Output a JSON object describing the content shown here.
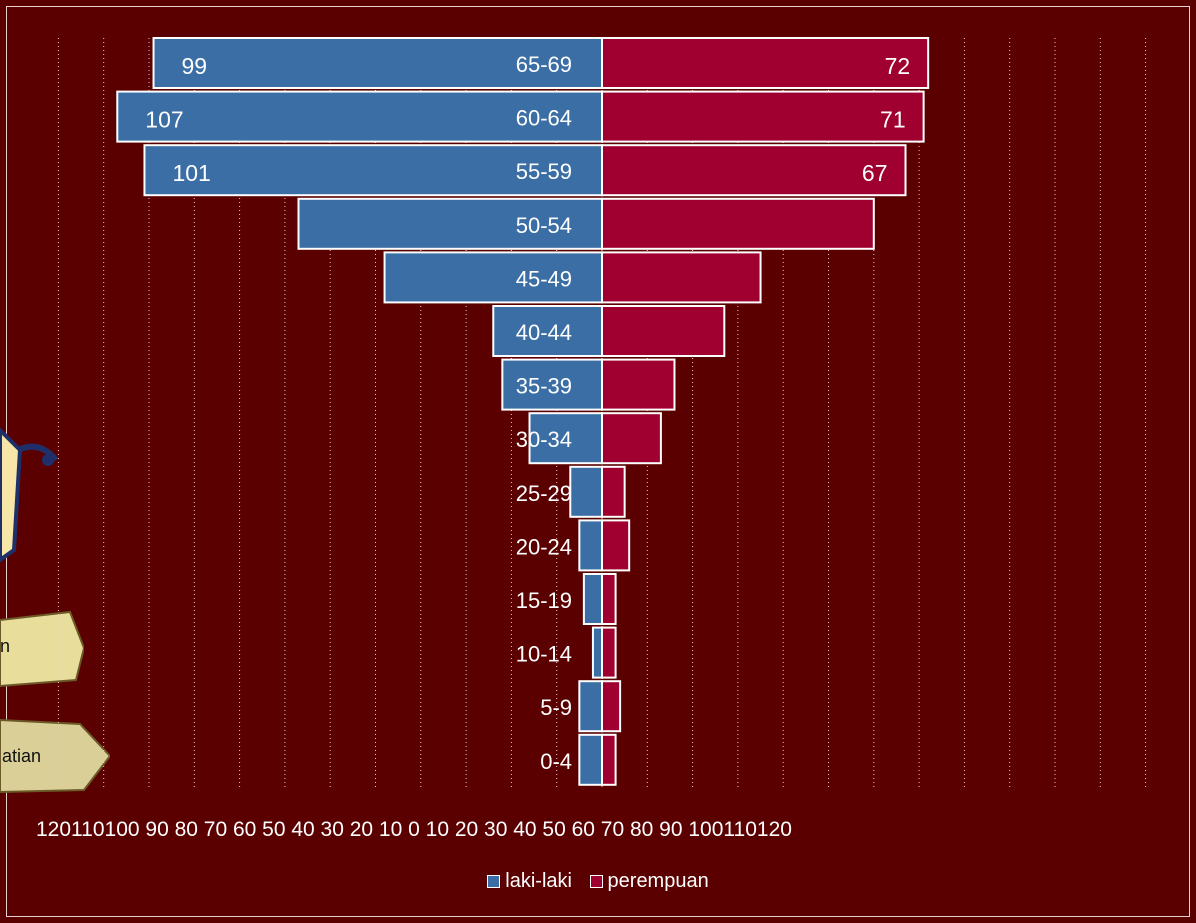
{
  "chart_data": {
    "type": "bar",
    "orientation": "horizontal",
    "subtype": "population-pyramid",
    "categories": [
      "65-69",
      "60-64",
      "55-59",
      "50-54",
      "45-49",
      "40-44",
      "35-39",
      "30-34",
      "25-29",
      "20-24",
      "15-19",
      "10-14",
      "5-9",
      "0-4"
    ],
    "series": [
      {
        "name": "laki-laki",
        "color": "#3a6ea5",
        "values": [
          99,
          107,
          101,
          67,
          48,
          24,
          22,
          16,
          7,
          5,
          4,
          2,
          5,
          5
        ]
      },
      {
        "name": "perempuan",
        "color": "#a00030",
        "values": [
          72,
          71,
          67,
          60,
          35,
          27,
          16,
          13,
          5,
          6,
          3,
          3,
          4,
          3
        ]
      }
    ],
    "data_labels": {
      "laki-laki": [
        "99",
        "107",
        "101"
      ],
      "perempuan": [
        "72",
        "71",
        "67"
      ]
    },
    "x_tick_labels": "120110100 90 80 70 60 50 40 30 20 10 0 10 20 30 40 50 60 70 80 90 100110120",
    "xlim": [
      -120,
      120
    ],
    "grid": "vertical dotted",
    "legend_position": "bottom"
  },
  "decor": {
    "sign_text_1": "n",
    "sign_text_2": "atian"
  }
}
